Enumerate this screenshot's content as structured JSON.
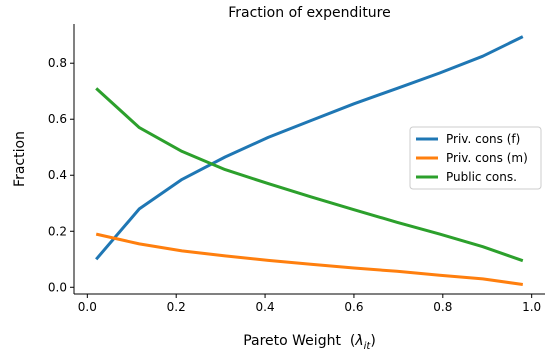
{
  "chart_data": {
    "type": "line",
    "title": "Fraction of expenditure",
    "xlabel": "Pareto Weight",
    "xlabel_symbol": "λ",
    "xlabel_subscript": "it",
    "ylabel": "Fraction",
    "xlim": [
      -0.03,
      1.03
    ],
    "ylim": [
      -0.024,
      0.94
    ],
    "xticks": [
      0.0,
      0.2,
      0.4,
      0.6,
      0.8,
      1.0
    ],
    "xtick_labels": [
      "0.0",
      "0.2",
      "0.4",
      "0.6",
      "0.8",
      "1.0"
    ],
    "yticks": [
      0.0,
      0.2,
      0.4,
      0.6,
      0.8
    ],
    "ytick_labels": [
      "0.0",
      "0.2",
      "0.4",
      "0.6",
      "0.8"
    ],
    "grid": false,
    "legend_position": "center-right",
    "x": [
      0.02,
      0.117,
      0.213,
      0.31,
      0.407,
      0.503,
      0.6,
      0.697,
      0.793,
      0.89,
      0.98
    ],
    "series": [
      {
        "name": "Priv. cons (f)",
        "color": "#1f77b4",
        "values": [
          0.1,
          0.28,
          0.385,
          0.465,
          0.535,
          0.595,
          0.655,
          0.71,
          0.765,
          0.825,
          0.895
        ]
      },
      {
        "name": "Priv. cons (m)",
        "color": "#ff7f0e",
        "values": [
          0.19,
          0.155,
          0.13,
          0.112,
          0.096,
          0.082,
          0.069,
          0.057,
          0.043,
          0.03,
          0.01
        ]
      },
      {
        "name": "Public cons.",
        "color": "#2ca02c",
        "values": [
          0.71,
          0.57,
          0.485,
          0.42,
          0.37,
          0.323,
          0.277,
          0.232,
          0.19,
          0.145,
          0.095
        ]
      }
    ]
  }
}
